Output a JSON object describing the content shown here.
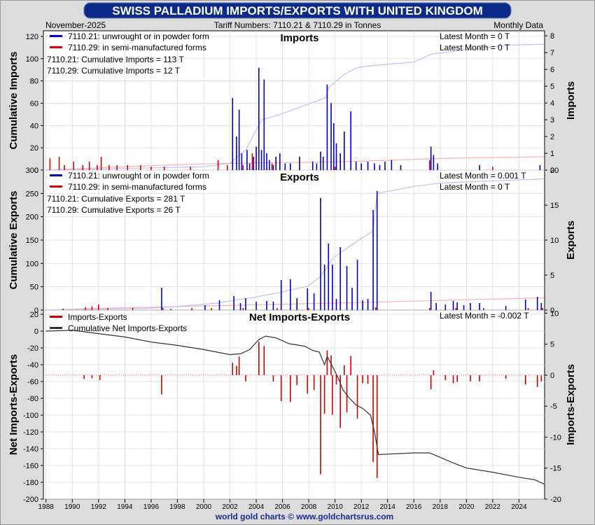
{
  "title": "SWISS PALLADIUM IMPORTS/EXPORTS WITH UNITED KINGDOM",
  "date_label": "November-2025",
  "tariff_label": "Tariff Numbers: 7110.21 & 7110.29 in Tonnes",
  "frequency_label": "Monthly Data",
  "footer": "world gold charts © www.goldchartsrus.com",
  "colors": {
    "title_bg": "#0c2a8a",
    "title_text": "#ffffff",
    "series_7110_21": "#0000cc",
    "series_7110_29": "#dd0000",
    "cum_7110_21": "#b8c2ff",
    "cum_7110_29": "#ffb0b0",
    "net_bar": "#cc0000",
    "net_cum": "#333333"
  },
  "x_years": [
    "1988",
    "1990",
    "1992",
    "1994",
    "1996",
    "1998",
    "2000",
    "2002",
    "2004",
    "2006",
    "2008",
    "2010",
    "2012",
    "2014",
    "2016",
    "2018",
    "2020",
    "2022",
    "2024"
  ],
  "chart_data": [
    {
      "type": "bar",
      "title": "Imports",
      "left_axis_label": "Cumulative Imports",
      "right_axis_label": "Imports",
      "left_ticks": [
        "0",
        "20",
        "40",
        "60",
        "80",
        "100",
        "120"
      ],
      "right_ticks": [
        "0",
        "1",
        "2",
        "3",
        "4",
        "5",
        "6",
        "7",
        "8"
      ],
      "left_ylim": [
        0,
        125
      ],
      "right_ylim": [
        0,
        8.3
      ],
      "legend": [
        "7110.21: unwrought or in powder form",
        "7110.29: in semi-manufactured forms"
      ],
      "latest": [
        "Latest Month = 0 T",
        "Latest Month = 0 T"
      ],
      "totals": [
        "7110.21: Cumulative Imports = 113 T",
        "7110.29: Cumulative Imports = 12 T"
      ],
      "bars_7110_21": [
        [
          2002.2,
          4.3
        ],
        [
          2002.5,
          2.0
        ],
        [
          2002.7,
          3.6
        ],
        [
          2002.9,
          1.0
        ],
        [
          2003.3,
          1.2
        ],
        [
          2003.5,
          0.4
        ],
        [
          2003.8,
          0.8
        ],
        [
          2004.0,
          1.4
        ],
        [
          2004.2,
          6.1
        ],
        [
          2004.4,
          1.2
        ],
        [
          2004.6,
          5.4
        ],
        [
          2004.8,
          1.0
        ],
        [
          2005.0,
          0.6
        ],
        [
          2005.3,
          0.3
        ],
        [
          2005.5,
          0.8
        ],
        [
          2005.8,
          1.0
        ],
        [
          2006.2,
          0.4
        ],
        [
          2006.6,
          0.4
        ],
        [
          2007.3,
          0.8
        ],
        [
          2008.3,
          0.5
        ],
        [
          2008.6,
          0.4
        ],
        [
          2008.9,
          1.1
        ],
        [
          2009.1,
          0.8
        ],
        [
          2009.4,
          5.1
        ],
        [
          2009.7,
          4.0
        ],
        [
          2009.9,
          2.8
        ],
        [
          2010.1,
          1.6
        ],
        [
          2010.4,
          1.0
        ],
        [
          2010.7,
          2.3
        ],
        [
          2011.2,
          3.5
        ],
        [
          2011.6,
          0.5
        ],
        [
          2012.0,
          0.4
        ],
        [
          2012.5,
          0.5
        ],
        [
          2013.0,
          0.4
        ],
        [
          2013.4,
          0.3
        ],
        [
          2013.8,
          0.5
        ],
        [
          2014.3,
          0.6
        ],
        [
          2015.0,
          0.3
        ],
        [
          2017.3,
          1.4
        ],
        [
          2017.5,
          0.9
        ],
        [
          2017.8,
          0.4
        ],
        [
          2021.0,
          0.3
        ],
        [
          2025.6,
          0.3
        ]
      ],
      "bars_7110_29": [
        [
          1988.3,
          0.7
        ],
        [
          1989.0,
          0.8
        ],
        [
          1989.4,
          0.3
        ],
        [
          1990.1,
          0.5
        ],
        [
          1990.8,
          0.3
        ],
        [
          1991.3,
          0.5
        ],
        [
          1991.9,
          0.3
        ],
        [
          1992.2,
          0.8
        ],
        [
          1992.8,
          0.3
        ],
        [
          1993.4,
          0.3
        ],
        [
          1994.2,
          0.3
        ],
        [
          1995.2,
          0.3
        ],
        [
          1996.0,
          0.2
        ],
        [
          1997.0,
          0.2
        ],
        [
          1999.0,
          0.2
        ],
        [
          2001.1,
          0.6
        ],
        [
          2001.8,
          0.3
        ],
        [
          2003.0,
          0.3
        ],
        [
          2003.7,
          1.0
        ],
        [
          2005.2,
          0.4
        ],
        [
          2010.0,
          0.2
        ],
        [
          2017.2,
          0.6
        ],
        [
          2022.0,
          0.2
        ]
      ],
      "cum_7110_21": [
        [
          1988,
          0
        ],
        [
          1992,
          1
        ],
        [
          1996,
          2
        ],
        [
          2000,
          3
        ],
        [
          2002,
          6
        ],
        [
          2003.2,
          18
        ],
        [
          2004.4,
          45
        ],
        [
          2005.8,
          50
        ],
        [
          2007,
          55
        ],
        [
          2009.3,
          65
        ],
        [
          2009.5,
          74
        ],
        [
          2010.7,
          86
        ],
        [
          2011.7,
          92
        ],
        [
          2013,
          94
        ],
        [
          2016,
          97
        ],
        [
          2017.3,
          104
        ],
        [
          2020,
          108
        ],
        [
          2023,
          112
        ],
        [
          2025.9,
          113
        ]
      ],
      "cum_7110_29": [
        [
          1988,
          0
        ],
        [
          1992,
          2
        ],
        [
          1996,
          4
        ],
        [
          2000,
          5.5
        ],
        [
          2002,
          6
        ],
        [
          2004,
          6.5
        ],
        [
          2008,
          7
        ],
        [
          2012,
          8
        ],
        [
          2017,
          10
        ],
        [
          2020,
          11
        ],
        [
          2025.9,
          12
        ]
      ]
    },
    {
      "type": "bar",
      "title": "Exports",
      "left_axis_label": "Cumulative Exports",
      "right_axis_label": "Exports",
      "left_ticks": [
        "0",
        "50",
        "100",
        "150",
        "200",
        "250",
        "300"
      ],
      "right_ticks": [
        "0",
        "5",
        "10",
        "15",
        "20"
      ],
      "left_ylim": [
        0,
        300
      ],
      "right_ylim": [
        0,
        20
      ],
      "legend": [
        "7110.21: unwrought or in powder form",
        "7110.29: in semi-manufactured forms"
      ],
      "latest": [
        "Latest Month = 0.001 T",
        "Latest Month = 0 T"
      ],
      "totals": [
        "7110.21: Cumulative Exports = 281 T",
        "7110.29: Cumulative Exports = 26 T"
      ],
      "bars_7110_21": [
        [
          1996.8,
          3.2
        ],
        [
          2000.1,
          0.7
        ],
        [
          2001.2,
          1.4
        ],
        [
          2002.3,
          2.0
        ],
        [
          2002.8,
          1.0
        ],
        [
          2003.2,
          1.7
        ],
        [
          2004.0,
          1.2
        ],
        [
          2004.8,
          1.3
        ],
        [
          2005.3,
          1.2
        ],
        [
          2005.9,
          4.3
        ],
        [
          2006.6,
          4.4
        ],
        [
          2007.1,
          1.7
        ],
        [
          2007.9,
          3.1
        ],
        [
          2008.4,
          2.4
        ],
        [
          2008.9,
          16.0
        ],
        [
          2009.2,
          6.5
        ],
        [
          2009.5,
          9.5
        ],
        [
          2009.8,
          6.5
        ],
        [
          2010.1,
          1.6
        ],
        [
          2010.4,
          9.0
        ],
        [
          2010.9,
          6.3
        ],
        [
          2011.3,
          3.2
        ],
        [
          2011.7,
          7.2
        ],
        [
          2012.1,
          1.4
        ],
        [
          2012.5,
          1.6
        ],
        [
          2012.9,
          14.3
        ],
        [
          2013.2,
          17.0
        ],
        [
          2017.3,
          2.6
        ],
        [
          2017.7,
          1.0
        ],
        [
          2018.4,
          0.8
        ],
        [
          2019.0,
          1.3
        ],
        [
          2019.3,
          1.1
        ],
        [
          2019.8,
          0.7
        ],
        [
          2020.3,
          1.0
        ],
        [
          2021.0,
          1.0
        ],
        [
          2023.0,
          0.6
        ],
        [
          2024.5,
          1.5
        ],
        [
          2025.4,
          1.9
        ],
        [
          2025.7,
          1.0
        ]
      ],
      "bars_7110_29": [
        [
          1989.3,
          0.2
        ],
        [
          1991.0,
          0.4
        ],
        [
          1991.5,
          0.5
        ],
        [
          1992.0,
          0.8
        ],
        [
          1992.7,
          0.3
        ],
        [
          1994.6,
          0.3
        ],
        [
          1996.9,
          0.3
        ],
        [
          1997.5,
          0.2
        ],
        [
          1999.1,
          0.3
        ],
        [
          2000.6,
          0.3
        ],
        [
          2003.0,
          0.3
        ],
        [
          2005.6,
          0.3
        ],
        [
          2008.0,
          0.3
        ],
        [
          2013.1,
          0.4
        ],
        [
          2017.2,
          0.3
        ],
        [
          2019.2,
          0.3
        ],
        [
          2021.3,
          0.3
        ],
        [
          2024.7,
          0.3
        ],
        [
          2025.8,
          0.3
        ]
      ],
      "cum_7110_21": [
        [
          1988,
          0
        ],
        [
          1992,
          2
        ],
        [
          1996,
          4
        ],
        [
          1998,
          8
        ],
        [
          2001,
          15
        ],
        [
          2004,
          28
        ],
        [
          2005.8,
          38
        ],
        [
          2007.9,
          51
        ],
        [
          2008.9,
          72
        ],
        [
          2009.8,
          110
        ],
        [
          2010.5,
          125
        ],
        [
          2011.7,
          148
        ],
        [
          2012.9,
          170
        ],
        [
          2013.2,
          250
        ],
        [
          2016,
          265
        ],
        [
          2018,
          272
        ],
        [
          2021,
          276
        ],
        [
          2024,
          279
        ],
        [
          2025.9,
          281
        ]
      ],
      "cum_7110_29": [
        [
          1988,
          0
        ],
        [
          1992,
          4
        ],
        [
          1996,
          6
        ],
        [
          2000,
          9
        ],
        [
          2005,
          12
        ],
        [
          2010,
          15
        ],
        [
          2013,
          17
        ],
        [
          2017,
          20
        ],
        [
          2021,
          23
        ],
        [
          2025.9,
          26
        ]
      ]
    },
    {
      "type": "bar",
      "title": "Net Imports-Exports",
      "left_axis_label": "Net Imports-Exports",
      "right_axis_label": "Imports-Exports",
      "left_ticks": [
        "-200",
        "-180",
        "-160",
        "-140",
        "-120",
        "-100",
        "-80",
        "-60",
        "-40",
        "-20",
        "0",
        "20"
      ],
      "right_ticks": [
        "-20",
        "-15",
        "-10",
        "-5",
        "0",
        "5",
        "10"
      ],
      "left_ylim": [
        -200,
        25
      ],
      "right_ylim": [
        -20,
        10.5
      ],
      "legend": [
        "Imports-Exports",
        "Cumulative Net Imports-Exports"
      ],
      "latest": [
        "Latest Month = -0.002 T"
      ],
      "bars_net": [
        [
          1990.9,
          -0.6
        ],
        [
          1991.5,
          -0.5
        ],
        [
          1992.1,
          -0.8
        ],
        [
          1996.8,
          -3.1
        ],
        [
          2002.2,
          2.0
        ],
        [
          2002.5,
          1.5
        ],
        [
          2002.7,
          3.0
        ],
        [
          2003.2,
          -1.0
        ],
        [
          2004.2,
          5.4
        ],
        [
          2004.6,
          4.7
        ],
        [
          2005.3,
          -1.0
        ],
        [
          2005.9,
          -4.2
        ],
        [
          2006.6,
          -4.3
        ],
        [
          2007.1,
          -1.6
        ],
        [
          2007.9,
          -3.0
        ],
        [
          2008.4,
          -2.4
        ],
        [
          2008.9,
          -16.0
        ],
        [
          2009.2,
          -6.2
        ],
        [
          2009.4,
          4.0
        ],
        [
          2009.7,
          3.2
        ],
        [
          2009.8,
          -6.4
        ],
        [
          2010.1,
          -1.5
        ],
        [
          2010.4,
          -8.5
        ],
        [
          2010.7,
          1.6
        ],
        [
          2010.9,
          -6.0
        ],
        [
          2011.2,
          3.1
        ],
        [
          2011.7,
          -7.0
        ],
        [
          2012.1,
          -1.3
        ],
        [
          2012.5,
          -1.4
        ],
        [
          2012.9,
          -14.0
        ],
        [
          2013.2,
          -16.6
        ],
        [
          2017.3,
          -2.3
        ],
        [
          2017.5,
          0.8
        ],
        [
          2018.4,
          -0.8
        ],
        [
          2019.0,
          -1.3
        ],
        [
          2019.3,
          -1.1
        ],
        [
          2020.3,
          -1.0
        ],
        [
          2021.0,
          -1.0
        ],
        [
          2023.0,
          -0.6
        ],
        [
          2024.5,
          -1.5
        ],
        [
          2025.4,
          -1.9
        ],
        [
          2025.7,
          -1.0
        ]
      ],
      "cum_net": [
        [
          1988,
          0
        ],
        [
          1990,
          1
        ],
        [
          1992,
          -3
        ],
        [
          1994,
          -7
        ],
        [
          1996,
          -13
        ],
        [
          1998,
          -17
        ],
        [
          2000,
          -22
        ],
        [
          2002,
          -28
        ],
        [
          2002.8,
          -27
        ],
        [
          2003.5,
          -22
        ],
        [
          2004.2,
          -10
        ],
        [
          2004.7,
          -6
        ],
        [
          2005.5,
          -8
        ],
        [
          2006.5,
          -15
        ],
        [
          2007.7,
          -18
        ],
        [
          2008.3,
          -23
        ],
        [
          2008.8,
          -25
        ],
        [
          2009.2,
          -40
        ],
        [
          2009.4,
          -30
        ],
        [
          2009.9,
          -45
        ],
        [
          2010.3,
          -58
        ],
        [
          2010.6,
          -70
        ],
        [
          2011.1,
          -80
        ],
        [
          2011.6,
          -88
        ],
        [
          2012.1,
          -92
        ],
        [
          2012.7,
          -100
        ],
        [
          2013.0,
          -120
        ],
        [
          2013.3,
          -147
        ],
        [
          2016,
          -145
        ],
        [
          2017.2,
          -145
        ],
        [
          2019,
          -157
        ],
        [
          2020,
          -163
        ],
        [
          2022,
          -168
        ],
        [
          2024,
          -174
        ],
        [
          2025.2,
          -177
        ],
        [
          2025.9,
          -182
        ]
      ]
    }
  ]
}
